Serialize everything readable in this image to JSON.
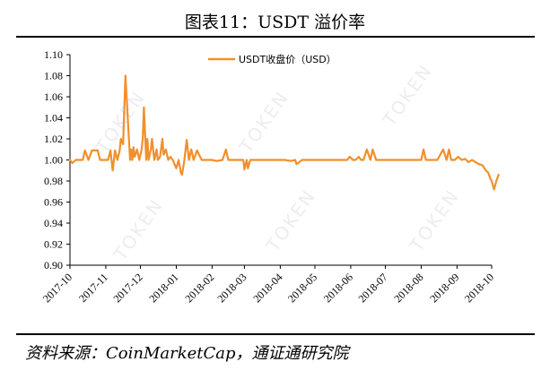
{
  "figure_title": "图表11：USDT 溢价率",
  "source": "资料来源：CoinMarketCap，通证通研究院",
  "watermark": "TOKEN",
  "colors": {
    "line": "#f0902c",
    "axis": "#000000",
    "grid": "none"
  },
  "chart_data": {
    "type": "line",
    "title": "",
    "xlabel": "",
    "ylabel": "",
    "ylim": [
      0.9,
      1.1
    ],
    "grid": false,
    "legend_position": "top-center",
    "y_ticks": [
      "0.90",
      "0.92",
      "0.94",
      "0.96",
      "0.98",
      "1.00",
      "1.02",
      "1.04",
      "1.06",
      "1.08",
      "1.10"
    ],
    "x_ticks": [
      "2017-10",
      "2017-11",
      "2017-12",
      "2018-01",
      "2018-02",
      "2018-03",
      "2018-04",
      "2018-05",
      "2018-06",
      "2018-07",
      "2018-08",
      "2018-09",
      "2018-10"
    ],
    "x": [
      "2017-10-01",
      "2017-10-03",
      "2017-10-06",
      "2017-10-09",
      "2017-10-12",
      "2017-10-14",
      "2017-10-17",
      "2017-10-20",
      "2017-10-25",
      "2017-10-27",
      "2017-10-30",
      "2017-11-03",
      "2017-11-05",
      "2017-11-07",
      "2017-11-09",
      "2017-11-11",
      "2017-11-13",
      "2017-11-14",
      "2017-11-16",
      "2017-11-18",
      "2017-11-20",
      "2017-11-22",
      "2017-11-23",
      "2017-11-24",
      "2017-11-25",
      "2017-11-26",
      "2017-11-28",
      "2017-11-30",
      "2017-12-02",
      "2017-12-03",
      "2017-12-04",
      "2017-12-06",
      "2017-12-07",
      "2017-12-08",
      "2017-12-10",
      "2017-12-11",
      "2017-12-13",
      "2017-12-15",
      "2017-12-16",
      "2017-12-18",
      "2017-12-20",
      "2017-12-21",
      "2017-12-23",
      "2017-12-25",
      "2017-12-27",
      "2017-12-29",
      "2018-01-01",
      "2018-01-03",
      "2018-01-05",
      "2018-01-06",
      "2018-01-08",
      "2018-01-10",
      "2018-01-12",
      "2018-01-14",
      "2018-01-16",
      "2018-01-19",
      "2018-01-23",
      "2018-01-27",
      "2018-02-01",
      "2018-02-05",
      "2018-02-10",
      "2018-02-13",
      "2018-02-15",
      "2018-02-18",
      "2018-02-22",
      "2018-02-25",
      "2018-02-28",
      "2018-03-01",
      "2018-03-03",
      "2018-03-04",
      "2018-03-06",
      "2018-03-10",
      "2018-03-15",
      "2018-03-20",
      "2018-03-25",
      "2018-03-30",
      "2018-04-05",
      "2018-04-10",
      "2018-04-14",
      "2018-04-15",
      "2018-04-20",
      "2018-04-25",
      "2018-05-01",
      "2018-05-06",
      "2018-05-12",
      "2018-05-18",
      "2018-05-24",
      "2018-05-27",
      "2018-05-29",
      "2018-05-31",
      "2018-06-03",
      "2018-06-05",
      "2018-06-08",
      "2018-06-10",
      "2018-06-12",
      "2018-06-15",
      "2018-06-18",
      "2018-06-20",
      "2018-06-23",
      "2018-06-27",
      "2018-07-01",
      "2018-07-07",
      "2018-07-13",
      "2018-07-19",
      "2018-07-25",
      "2018-08-01",
      "2018-08-03",
      "2018-08-05",
      "2018-08-10",
      "2018-08-15",
      "2018-08-20",
      "2018-08-23",
      "2018-08-25",
      "2018-08-27",
      "2018-08-30",
      "2018-09-02",
      "2018-09-05",
      "2018-09-08",
      "2018-09-11",
      "2018-09-14",
      "2018-09-17",
      "2018-09-20",
      "2018-09-23",
      "2018-09-26",
      "2018-09-28",
      "2018-09-30",
      "2018-10-01",
      "2018-10-03",
      "2018-10-05",
      "2018-10-07"
    ],
    "series": [
      {
        "name": "USDT收盘价（USD）",
        "values": [
          1.0,
          0.997,
          1.0,
          1.0,
          1.0,
          1.009,
          1.0,
          1.009,
          1.009,
          1.0,
          1.0,
          1.0,
          1.009,
          0.99,
          1.009,
          1.0,
          1.009,
          1.02,
          1.015,
          1.08,
          1.04,
          1.0,
          1.01,
          1.0,
          1.012,
          1.003,
          1.01,
          1.0,
          1.01,
          1.02,
          1.05,
          1.0,
          1.02,
          1.0,
          1.01,
          1.02,
          1.0,
          1.01,
          1.0,
          1.003,
          1.02,
          1.005,
          1.01,
          1.0,
          1.003,
          1.0,
          0.992,
          1.0,
          0.988,
          0.986,
          1.0,
          1.019,
          1.0,
          1.01,
          1.0,
          1.009,
          1.0,
          1.0,
          1.0,
          0.999,
          1.0,
          1.01,
          1.0,
          1.0,
          1.0,
          1.0,
          1.0,
          0.991,
          1.0,
          0.992,
          1.0,
          1.0,
          1.0,
          1.0,
          1.0,
          1.0,
          1.0,
          0.999,
          1.0,
          0.996,
          1.0,
          1.0,
          1.0,
          1.0,
          1.0,
          1.0,
          1.0,
          1.0,
          1.0,
          1.003,
          1.0,
          1.0,
          1.003,
          1.0,
          1.0,
          1.01,
          1.0,
          1.01,
          1.0,
          1.0,
          1.0,
          1.0,
          1.0,
          1.0,
          1.0,
          1.0,
          1.01,
          1.0,
          1.0,
          1.0,
          1.01,
          1.0,
          1.01,
          1.0,
          1.0,
          1.003,
          1.0,
          1.001,
          0.998,
          1.0,
          0.998,
          0.996,
          0.995,
          0.99,
          0.988,
          0.982,
          0.98,
          0.972,
          0.98,
          0.986
        ]
      }
    ]
  }
}
